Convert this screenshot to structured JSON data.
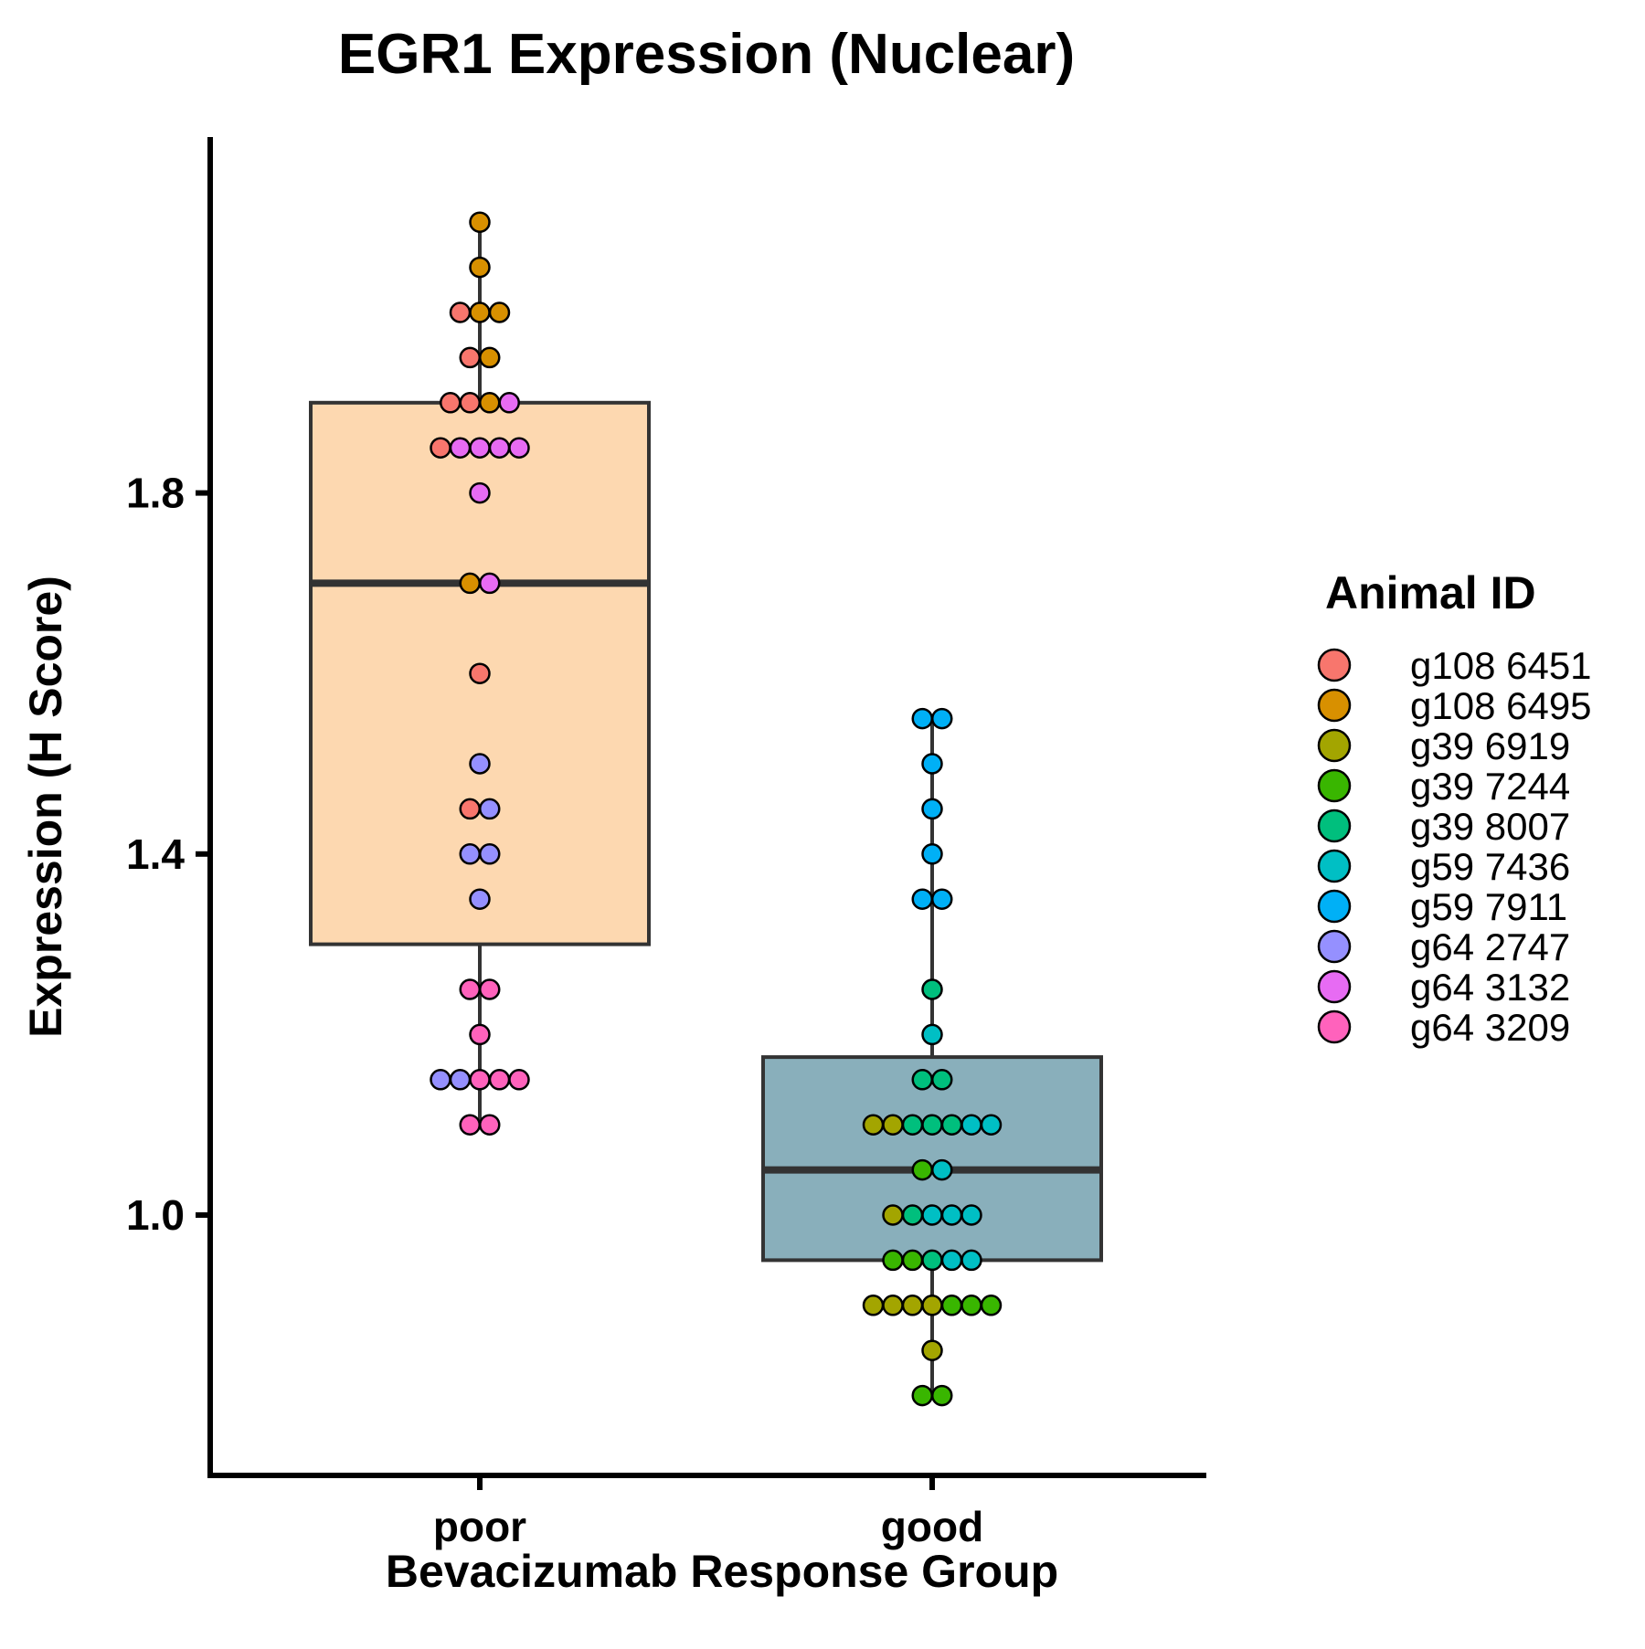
{
  "chart_data": {
    "type": "box",
    "title": "EGR1 Expression (Nuclear)",
    "xlabel": "Bevacizumab Response Group",
    "ylabel": "Expression (H Score)",
    "ylim": [
      0.71,
      2.19
    ],
    "yticks": [
      1.0,
      1.4,
      1.8
    ],
    "ytick_labels": [
      "1.0",
      "1.4",
      "1.8"
    ],
    "categories": [
      "poor",
      "good"
    ],
    "grid": false,
    "legend": {
      "title": "Animal ID",
      "placement": "right",
      "entries": [
        {
          "label": "g108 6451",
          "color": "#F8766D"
        },
        {
          "label": "g108 6495",
          "color": "#D89000"
        },
        {
          "label": "g39 6919",
          "color": "#A3A500"
        },
        {
          "label": "g39 7244",
          "color": "#39B600"
        },
        {
          "label": "g39 8007",
          "color": "#00BF7D"
        },
        {
          "label": "g59 7436",
          "color": "#00BFC4"
        },
        {
          "label": "g59 7911",
          "color": "#00B0F6"
        },
        {
          "label": "g64 2747",
          "color": "#9590FF"
        },
        {
          "label": "g64 3132",
          "color": "#E76BF3"
        },
        {
          "label": "g64 3209",
          "color": "#FF62BC"
        }
      ]
    },
    "boxes": [
      {
        "category": "poor",
        "whisker_low": 1.1,
        "q1": 1.3,
        "median": 1.7,
        "q3": 1.9,
        "whisker_high": 2.1,
        "fill": "#FDD8B0"
      },
      {
        "category": "good",
        "whisker_low": 0.8,
        "q1": 0.95,
        "median": 1.05,
        "q3": 1.175,
        "whisker_high": 1.55,
        "fill": "#89AFBB"
      }
    ],
    "points": [
      {
        "category": "poor",
        "values": [
          {
            "y": 2.1,
            "id": "g108 6495"
          },
          {
            "y": 2.05,
            "id": "g108 6495"
          },
          {
            "y": 2.0,
            "id": "g108 6451"
          },
          {
            "y": 2.0,
            "id": "g108 6495"
          },
          {
            "y": 2.0,
            "id": "g108 6495"
          },
          {
            "y": 1.95,
            "id": "g108 6451"
          },
          {
            "y": 1.95,
            "id": "g108 6495"
          },
          {
            "y": 1.9,
            "id": "g108 6451"
          },
          {
            "y": 1.9,
            "id": "g108 6451"
          },
          {
            "y": 1.9,
            "id": "g108 6495"
          },
          {
            "y": 1.9,
            "id": "g64 3132"
          },
          {
            "y": 1.85,
            "id": "g108 6451"
          },
          {
            "y": 1.85,
            "id": "g64 3132"
          },
          {
            "y": 1.85,
            "id": "g64 3132"
          },
          {
            "y": 1.85,
            "id": "g64 3132"
          },
          {
            "y": 1.85,
            "id": "g64 3132"
          },
          {
            "y": 1.8,
            "id": "g64 3132"
          },
          {
            "y": 1.7,
            "id": "g108 6495"
          },
          {
            "y": 1.7,
            "id": "g64 3132"
          },
          {
            "y": 1.6,
            "id": "g108 6451"
          },
          {
            "y": 1.5,
            "id": "g64 2747"
          },
          {
            "y": 1.45,
            "id": "g108 6451"
          },
          {
            "y": 1.45,
            "id": "g64 2747"
          },
          {
            "y": 1.4,
            "id": "g64 2747"
          },
          {
            "y": 1.4,
            "id": "g64 2747"
          },
          {
            "y": 1.35,
            "id": "g64 2747"
          },
          {
            "y": 1.25,
            "id": "g64 3209"
          },
          {
            "y": 1.25,
            "id": "g64 3209"
          },
          {
            "y": 1.2,
            "id": "g64 3209"
          },
          {
            "y": 1.15,
            "id": "g64 2747"
          },
          {
            "y": 1.15,
            "id": "g64 2747"
          },
          {
            "y": 1.15,
            "id": "g64 3209"
          },
          {
            "y": 1.15,
            "id": "g64 3209"
          },
          {
            "y": 1.15,
            "id": "g64 3209"
          },
          {
            "y": 1.1,
            "id": "g64 3209"
          },
          {
            "y": 1.1,
            "id": "g64 3209"
          }
        ]
      },
      {
        "category": "good",
        "values": [
          {
            "y": 1.55,
            "id": "g59 7911"
          },
          {
            "y": 1.55,
            "id": "g59 7911"
          },
          {
            "y": 1.5,
            "id": "g59 7911"
          },
          {
            "y": 1.45,
            "id": "g59 7911"
          },
          {
            "y": 1.4,
            "id": "g59 7911"
          },
          {
            "y": 1.35,
            "id": "g59 7911"
          },
          {
            "y": 1.35,
            "id": "g59 7911"
          },
          {
            "y": 1.25,
            "id": "g39 8007"
          },
          {
            "y": 1.2,
            "id": "g59 7436"
          },
          {
            "y": 1.15,
            "id": "g39 8007"
          },
          {
            "y": 1.15,
            "id": "g39 8007"
          },
          {
            "y": 1.1,
            "id": "g39 6919"
          },
          {
            "y": 1.1,
            "id": "g39 6919"
          },
          {
            "y": 1.1,
            "id": "g39 8007"
          },
          {
            "y": 1.1,
            "id": "g39 8007"
          },
          {
            "y": 1.1,
            "id": "g39 8007"
          },
          {
            "y": 1.1,
            "id": "g59 7436"
          },
          {
            "y": 1.1,
            "id": "g59 7436"
          },
          {
            "y": 1.05,
            "id": "g39 7244"
          },
          {
            "y": 1.05,
            "id": "g59 7436"
          },
          {
            "y": 1.0,
            "id": "g39 6919"
          },
          {
            "y": 1.0,
            "id": "g39 8007"
          },
          {
            "y": 1.0,
            "id": "g59 7436"
          },
          {
            "y": 1.0,
            "id": "g59 7436"
          },
          {
            "y": 1.0,
            "id": "g59 7436"
          },
          {
            "y": 0.95,
            "id": "g39 7244"
          },
          {
            "y": 0.95,
            "id": "g39 7244"
          },
          {
            "y": 0.95,
            "id": "g39 8007"
          },
          {
            "y": 0.95,
            "id": "g59 7436"
          },
          {
            "y": 0.95,
            "id": "g59 7436"
          },
          {
            "y": 0.9,
            "id": "g39 6919"
          },
          {
            "y": 0.9,
            "id": "g39 6919"
          },
          {
            "y": 0.9,
            "id": "g39 6919"
          },
          {
            "y": 0.9,
            "id": "g39 6919"
          },
          {
            "y": 0.9,
            "id": "g39 7244"
          },
          {
            "y": 0.9,
            "id": "g39 7244"
          },
          {
            "y": 0.9,
            "id": "g39 7244"
          },
          {
            "y": 0.85,
            "id": "g39 6919"
          },
          {
            "y": 0.8,
            "id": "g39 7244"
          },
          {
            "y": 0.8,
            "id": "g39 7244"
          }
        ]
      }
    ]
  }
}
